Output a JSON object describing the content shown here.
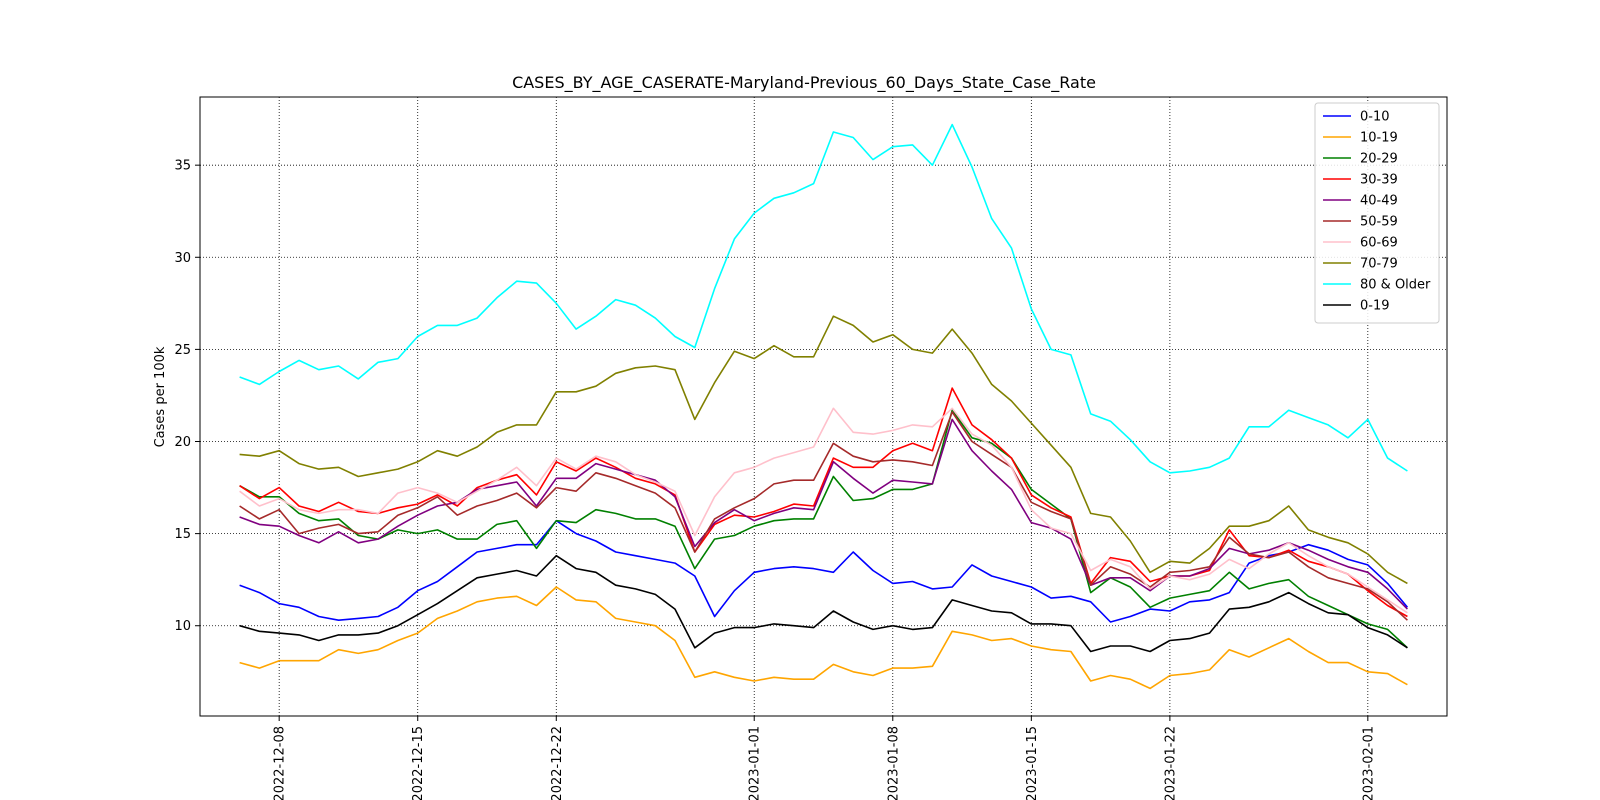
{
  "chart_data": {
    "type": "line",
    "title": "CASES_BY_AGE_CASERATE-Maryland-Previous_60_Days_State_Case_Rate",
    "xlabel": "",
    "ylabel": "Cases per 100k",
    "x_start": "2022-12-06",
    "x": [
      "2022-12-06",
      "2022-12-07",
      "2022-12-08",
      "2022-12-09",
      "2022-12-10",
      "2022-12-11",
      "2022-12-12",
      "2022-12-13",
      "2022-12-14",
      "2022-12-15",
      "2022-12-16",
      "2022-12-17",
      "2022-12-18",
      "2022-12-19",
      "2022-12-20",
      "2022-12-21",
      "2022-12-22",
      "2022-12-23",
      "2022-12-24",
      "2022-12-25",
      "2022-12-26",
      "2022-12-27",
      "2022-12-28",
      "2022-12-29",
      "2022-12-30",
      "2022-12-31",
      "2023-01-01",
      "2023-01-02",
      "2023-01-03",
      "2023-01-04",
      "2023-01-05",
      "2023-01-06",
      "2023-01-07",
      "2023-01-08",
      "2023-01-09",
      "2023-01-10",
      "2023-01-11",
      "2023-01-12",
      "2023-01-13",
      "2023-01-14",
      "2023-01-15",
      "2023-01-16",
      "2023-01-17",
      "2023-01-18",
      "2023-01-19",
      "2023-01-20",
      "2023-01-21",
      "2023-01-22",
      "2023-01-23",
      "2023-01-24",
      "2023-01-25",
      "2023-01-26",
      "2023-01-27",
      "2023-01-28",
      "2023-01-29",
      "2023-01-30",
      "2023-01-31",
      "2023-02-01",
      "2023-02-02",
      "2023-02-03"
    ],
    "xticks": [
      "2022-12-08",
      "2022-12-15",
      "2022-12-22",
      "2023-01-01",
      "2023-01-08",
      "2023-01-15",
      "2023-01-22",
      "2023-02-01"
    ],
    "yticks": [
      10,
      15,
      20,
      25,
      30,
      35
    ],
    "ylim": [
      5.1,
      38.7
    ],
    "xlim": [
      "2022-12-04",
      "2023-02-05"
    ],
    "grid": true,
    "legend_position": "top-right",
    "series": [
      {
        "name": "0-10",
        "color": "#0000ff",
        "values": [
          12.2,
          11.8,
          11.2,
          11.0,
          10.5,
          10.3,
          10.4,
          10.5,
          11.0,
          11.9,
          12.4,
          13.2,
          14.0,
          14.2,
          14.4,
          14.4,
          15.7,
          15.0,
          14.6,
          14.0,
          13.8,
          13.6,
          13.4,
          12.7,
          10.5,
          11.9,
          12.9,
          13.1,
          13.2,
          13.1,
          12.9,
          14.0,
          13.0,
          12.3,
          12.4,
          12.0,
          12.1,
          13.3,
          12.7,
          12.4,
          12.1,
          11.5,
          11.6,
          11.3,
          10.2,
          10.5,
          10.9,
          10.8,
          11.3,
          11.4,
          11.8,
          13.4,
          13.8,
          14.0,
          14.4,
          14.1,
          13.6,
          13.3,
          12.3,
          11.0
        ]
      },
      {
        "name": "10-19",
        "color": "#ffa500",
        "values": [
          8.0,
          7.7,
          8.1,
          8.1,
          8.1,
          8.7,
          8.5,
          8.7,
          9.2,
          9.6,
          10.4,
          10.8,
          11.3,
          11.5,
          11.6,
          11.1,
          12.1,
          11.4,
          11.3,
          10.4,
          10.2,
          10.0,
          9.2,
          7.2,
          7.5,
          7.2,
          7.0,
          7.2,
          7.1,
          7.1,
          7.9,
          7.5,
          7.3,
          7.7,
          7.7,
          7.8,
          9.7,
          9.5,
          9.2,
          9.3,
          8.9,
          8.7,
          8.6,
          7.0,
          7.3,
          7.1,
          6.6,
          7.3,
          7.4,
          7.6,
          8.7,
          8.3,
          8.8,
          9.3,
          8.6,
          8.0,
          8.0,
          7.5,
          7.4,
          6.8
        ]
      },
      {
        "name": "20-29",
        "color": "#008000",
        "values": [
          17.6,
          17.0,
          17.0,
          16.1,
          15.7,
          15.8,
          14.9,
          14.7,
          15.2,
          15.0,
          15.2,
          14.7,
          14.7,
          15.5,
          15.7,
          14.2,
          15.7,
          15.6,
          16.3,
          16.1,
          15.8,
          15.8,
          15.4,
          13.1,
          14.7,
          14.9,
          15.4,
          15.7,
          15.8,
          15.8,
          18.1,
          16.8,
          16.9,
          17.4,
          17.4,
          17.7,
          21.7,
          20.2,
          19.9,
          19.1,
          17.4,
          16.6,
          15.8,
          11.8,
          12.6,
          12.1,
          11.0,
          11.5,
          11.7,
          11.9,
          12.9,
          12.0,
          12.3,
          12.5,
          11.6,
          11.1,
          10.6,
          10.1,
          9.8,
          8.8
        ]
      },
      {
        "name": "30-39",
        "color": "#ff0000",
        "values": [
          17.6,
          16.9,
          17.5,
          16.5,
          16.2,
          16.7,
          16.2,
          16.1,
          16.4,
          16.6,
          17.1,
          16.5,
          17.5,
          17.9,
          18.2,
          17.1,
          18.9,
          18.4,
          19.1,
          18.6,
          18.0,
          17.7,
          17.1,
          14.0,
          15.5,
          16.0,
          15.9,
          16.2,
          16.6,
          16.5,
          19.1,
          18.6,
          18.6,
          19.5,
          19.9,
          19.5,
          22.9,
          20.9,
          20.1,
          19.1,
          17.1,
          16.4,
          15.9,
          12.3,
          13.7,
          13.5,
          12.4,
          12.7,
          12.7,
          13.0,
          15.2,
          13.8,
          13.7,
          14.1,
          13.5,
          13.2,
          12.8,
          11.9,
          11.1,
          10.5
        ]
      },
      {
        "name": "40-49",
        "color": "#800080",
        "values": [
          15.9,
          15.5,
          15.4,
          14.9,
          14.5,
          15.1,
          14.5,
          14.7,
          15.4,
          16.0,
          16.5,
          16.7,
          17.4,
          17.6,
          17.8,
          16.5,
          18.0,
          18.0,
          18.8,
          18.5,
          18.2,
          17.9,
          17.0,
          14.3,
          15.6,
          16.3,
          15.7,
          16.1,
          16.4,
          16.3,
          18.9,
          18.0,
          17.2,
          17.9,
          17.8,
          17.7,
          21.2,
          19.5,
          18.4,
          17.4,
          15.6,
          15.3,
          14.7,
          12.2,
          12.6,
          12.6,
          11.9,
          12.7,
          12.7,
          13.1,
          14.2,
          13.9,
          14.1,
          14.5,
          14.1,
          13.6,
          13.2,
          12.9,
          12.0,
          10.9
        ]
      },
      {
        "name": "50-59",
        "color": "#a52a2a",
        "values": [
          16.5,
          15.8,
          16.3,
          15.0,
          15.3,
          15.5,
          15.0,
          15.1,
          16.0,
          16.4,
          17.0,
          16.0,
          16.5,
          16.8,
          17.2,
          16.4,
          17.5,
          17.3,
          18.3,
          18.0,
          17.6,
          17.2,
          16.4,
          14.0,
          15.8,
          16.4,
          16.9,
          17.7,
          17.9,
          17.9,
          19.9,
          19.2,
          18.9,
          19.0,
          18.9,
          18.7,
          21.6,
          20.0,
          19.3,
          18.6,
          16.7,
          16.2,
          15.8,
          12.2,
          13.2,
          12.8,
          12.1,
          12.9,
          13.0,
          13.2,
          14.8,
          13.9,
          13.7,
          14.0,
          13.2,
          12.6,
          12.3,
          12.0,
          11.3,
          10.3
        ]
      },
      {
        "name": "60-69",
        "color": "#ffc0cb",
        "values": [
          17.3,
          16.5,
          16.9,
          16.3,
          16.1,
          16.3,
          16.3,
          16.1,
          17.2,
          17.5,
          17.2,
          16.7,
          17.3,
          17.9,
          18.6,
          17.6,
          19.1,
          18.5,
          19.2,
          18.9,
          18.2,
          17.8,
          17.3,
          14.9,
          17.0,
          18.3,
          18.6,
          19.1,
          19.4,
          19.7,
          21.8,
          20.5,
          20.4,
          20.6,
          20.9,
          20.8,
          21.8,
          20.4,
          19.8,
          18.6,
          16.3,
          15.3,
          15.0,
          13.0,
          13.6,
          13.2,
          12.0,
          12.7,
          12.5,
          12.8,
          13.6,
          13.1,
          13.9,
          14.5,
          13.8,
          13.2,
          12.8,
          12.1,
          11.4,
          10.7
        ]
      },
      {
        "name": "70-79",
        "color": "#808000",
        "values": [
          19.3,
          19.2,
          19.5,
          18.8,
          18.5,
          18.6,
          18.1,
          18.3,
          18.5,
          18.9,
          19.5,
          19.2,
          19.7,
          20.5,
          20.9,
          20.9,
          22.7,
          22.7,
          23.0,
          23.7,
          24.0,
          24.1,
          23.9,
          21.2,
          23.2,
          24.9,
          24.5,
          25.2,
          24.6,
          24.6,
          26.8,
          26.3,
          25.4,
          25.8,
          25.0,
          24.8,
          26.1,
          24.8,
          23.1,
          22.2,
          21.0,
          19.8,
          18.6,
          16.1,
          15.9,
          14.6,
          12.9,
          13.5,
          13.4,
          14.2,
          15.4,
          15.4,
          15.7,
          16.5,
          15.2,
          14.8,
          14.5,
          13.9,
          12.9,
          12.3
        ]
      },
      {
        "name": "80 & Older",
        "color": "#00ffff",
        "values": [
          23.5,
          23.1,
          23.8,
          24.4,
          23.9,
          24.1,
          23.4,
          24.3,
          24.5,
          25.7,
          26.3,
          26.3,
          26.7,
          27.8,
          28.7,
          28.6,
          27.5,
          26.1,
          26.8,
          27.7,
          27.4,
          26.7,
          25.7,
          25.1,
          28.3,
          31.0,
          32.4,
          33.2,
          33.5,
          34.0,
          36.8,
          36.5,
          35.3,
          36.0,
          36.1,
          35.0,
          37.2,
          34.9,
          32.1,
          30.5,
          27.2,
          25.0,
          24.7,
          21.5,
          21.1,
          20.1,
          18.9,
          18.3,
          18.4,
          18.6,
          19.1,
          20.8,
          20.8,
          21.7,
          21.3,
          20.9,
          20.2,
          21.2,
          19.1,
          18.4
        ]
      },
      {
        "name": "0-19",
        "color": "#000000",
        "values": [
          10.0,
          9.7,
          9.6,
          9.5,
          9.2,
          9.5,
          9.5,
          9.6,
          10.0,
          10.6,
          11.2,
          11.9,
          12.6,
          12.8,
          13.0,
          12.7,
          13.8,
          13.1,
          12.9,
          12.2,
          12.0,
          11.7,
          10.9,
          8.8,
          9.6,
          9.9,
          9.9,
          10.1,
          10.0,
          9.9,
          10.8,
          10.2,
          9.8,
          10.0,
          9.8,
          9.9,
          11.4,
          11.1,
          10.8,
          10.7,
          10.1,
          10.1,
          10.0,
          8.6,
          8.9,
          8.9,
          8.6,
          9.2,
          9.3,
          9.6,
          10.9,
          11.0,
          11.3,
          11.8,
          11.2,
          10.7,
          10.6,
          9.9,
          9.5,
          8.8
        ]
      }
    ]
  }
}
